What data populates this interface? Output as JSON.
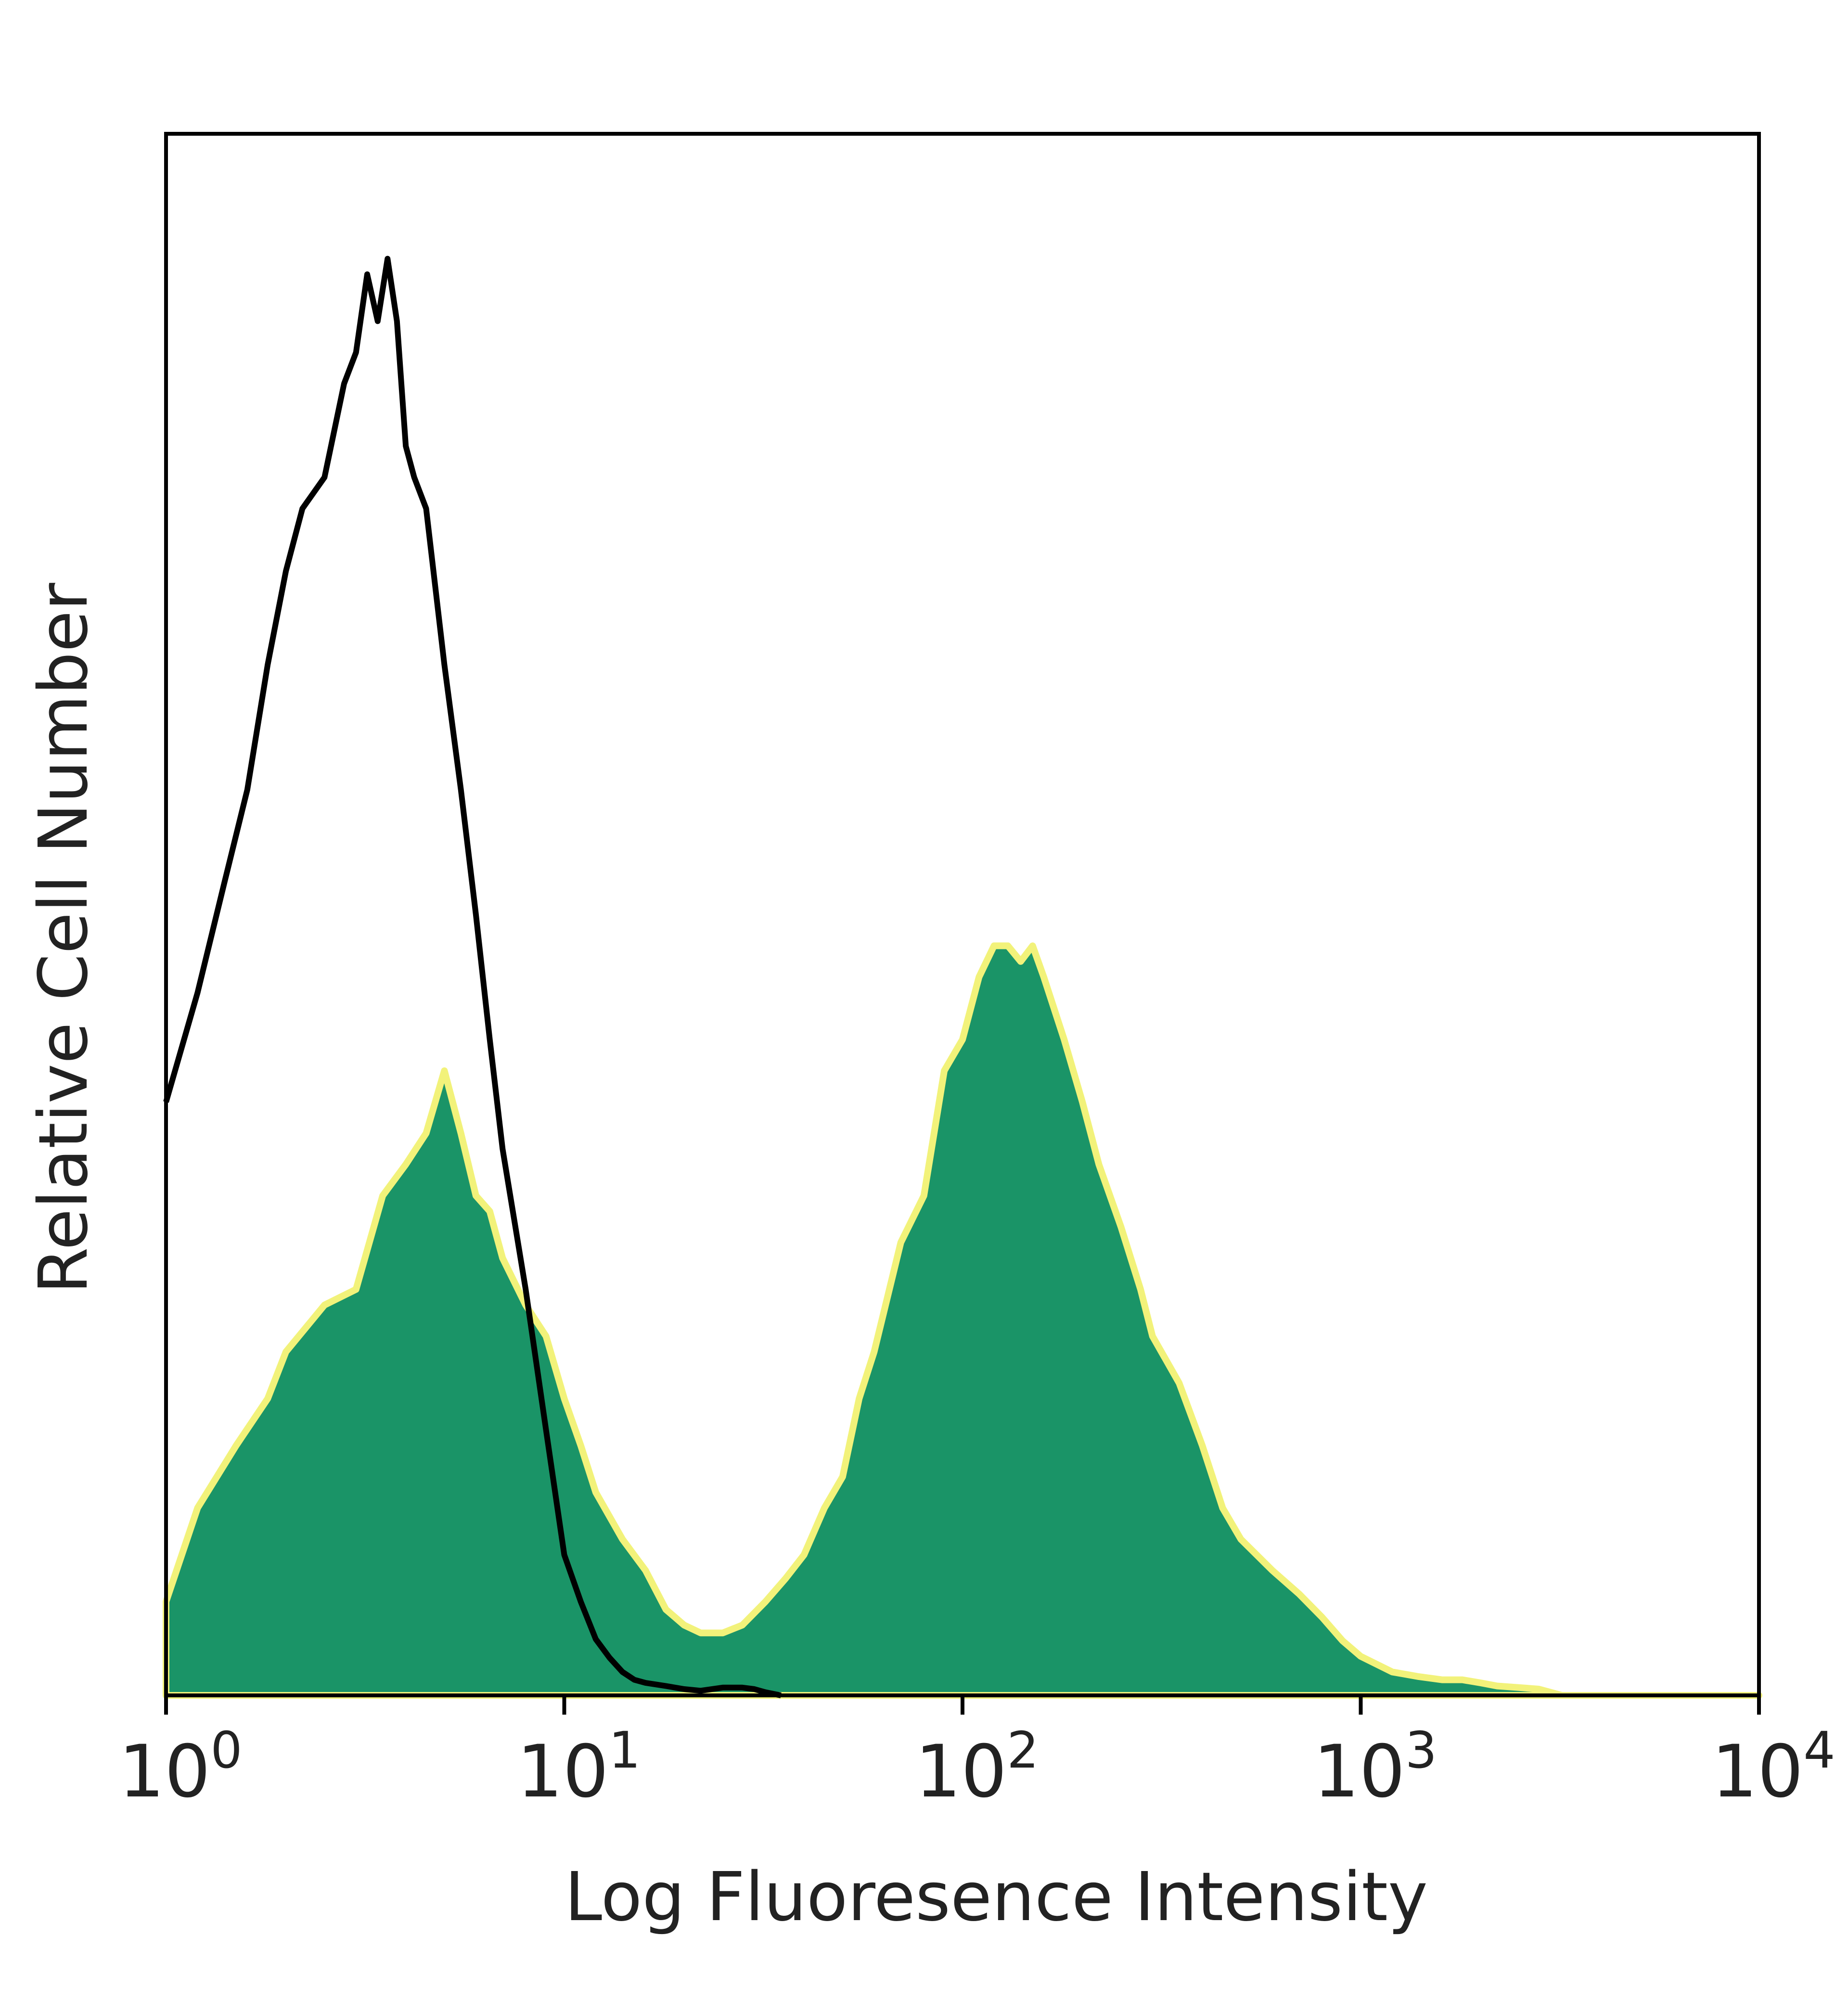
{
  "chart_data": {
    "type": "area",
    "title": "",
    "xlabel": "Log Fluoresence Intensity",
    "ylabel": "Relative Cell Number",
    "x_scale": "log",
    "xlim": [
      1,
      10000
    ],
    "ylim": [
      0,
      100
    ],
    "grid": false,
    "legend": "none",
    "x_ticks": [
      {
        "base": "10",
        "exp": "0",
        "value": 1
      },
      {
        "base": "10",
        "exp": "1",
        "value": 10
      },
      {
        "base": "10",
        "exp": "2",
        "value": 100
      },
      {
        "base": "10",
        "exp": "3",
        "value": 1000
      },
      {
        "base": "10",
        "exp": "4",
        "value": 10000
      }
    ],
    "series": [
      {
        "style": "line",
        "color": "#000000",
        "x": [
          1,
          1.2,
          1.4,
          1.6,
          1.8,
          2.0,
          2.2,
          2.5,
          2.8,
          3.0,
          3.2,
          3.4,
          3.6,
          3.8,
          4.0,
          4.2,
          4.5,
          5.0,
          5.5,
          6.0,
          6.5,
          7.0,
          8.0,
          9.0,
          10,
          11,
          12,
          13,
          14,
          15,
          16,
          18,
          20,
          22,
          25,
          28,
          30,
          32,
          35
        ],
        "y": [
          38,
          45,
          52,
          58,
          66,
          72,
          76,
          78,
          84,
          86,
          91,
          88,
          92,
          88,
          80,
          78,
          76,
          66,
          58,
          50,
          42,
          35,
          26,
          17,
          9,
          6,
          3.6,
          2.4,
          1.5,
          1.0,
          0.8,
          0.6,
          0.4,
          0.3,
          0.5,
          0.5,
          0.4,
          0.2,
          0
        ]
      },
      {
        "style": "filled",
        "color": "#1a9467",
        "edge_color": "#f2f27a",
        "x": [
          1,
          1.2,
          1.5,
          1.8,
          2.0,
          2.5,
          3.0,
          3.5,
          4.0,
          4.5,
          5.0,
          5.5,
          6.0,
          6.5,
          7.0,
          8.0,
          9.0,
          10,
          11,
          12,
          14,
          16,
          18,
          20,
          22,
          25,
          28,
          32,
          36,
          40,
          45,
          50,
          55,
          60,
          70,
          80,
          90,
          100,
          110,
          120,
          130,
          140,
          150,
          160,
          180,
          200,
          220,
          250,
          280,
          300,
          350,
          400,
          450,
          500,
          600,
          700,
          800,
          900,
          1000,
          1200,
          1400,
          1600,
          1800,
          2000,
          2200,
          2500,
          2800,
          3200,
          10000
        ],
        "y": [
          6,
          12,
          16,
          19,
          22,
          25,
          26,
          32,
          34,
          36,
          40,
          36,
          32,
          31,
          28,
          25,
          23,
          19,
          16,
          13,
          10,
          8,
          5.5,
          4.5,
          4,
          4,
          4.5,
          6,
          7.5,
          9,
          12,
          14,
          19,
          22,
          29,
          32,
          40,
          42,
          46,
          48,
          48,
          47,
          48,
          46,
          42,
          38,
          34,
          30,
          26,
          23,
          20,
          16,
          12,
          10,
          8,
          6.5,
          5,
          3.5,
          2.5,
          1.5,
          1.2,
          1,
          1,
          0.8,
          0.6,
          0.5,
          0.4,
          0,
          0
        ]
      }
    ]
  }
}
